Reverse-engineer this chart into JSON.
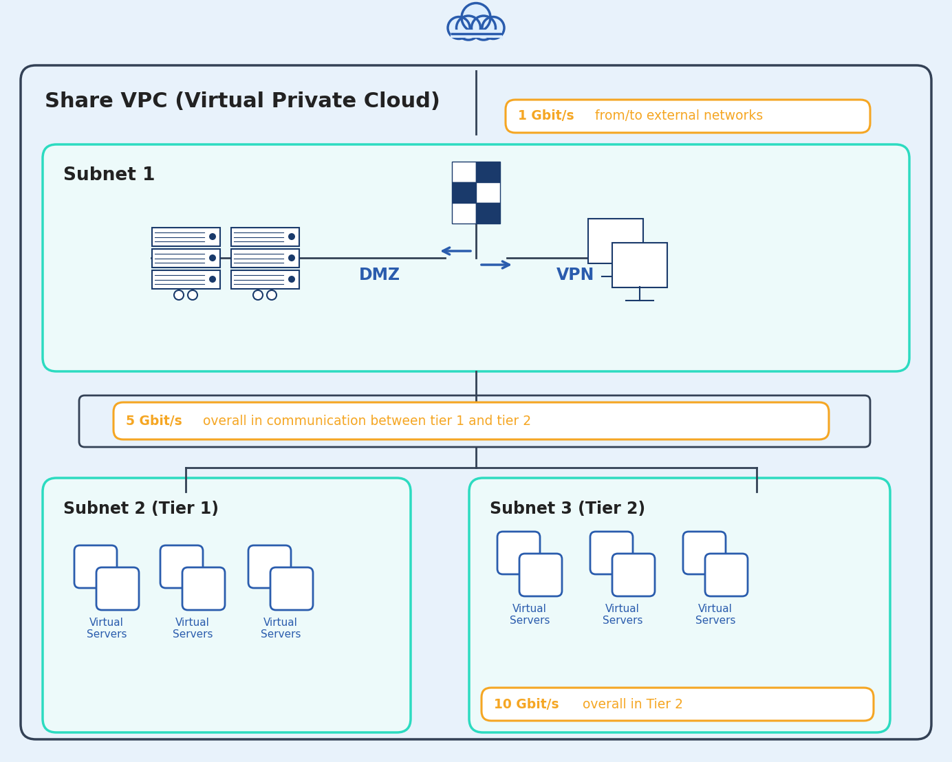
{
  "bg_color": "#e8f2fb",
  "vpc_border": "#334155",
  "teal": "#2cdbc0",
  "dark_blue": "#1a3a6b",
  "mid_blue": "#2a5cad",
  "orange": "#f5a623",
  "text_dark": "#222222",
  "text_blue": "#2a5cad",
  "white": "#ffffff",
  "label_vpc": "Share VPC (Virtual Private Cloud)",
  "label_subnet1": "Subnet 1",
  "label_subnet2": "Subnet 2 (Tier 1)",
  "label_subnet3": "Subnet 3 (Tier 2)",
  "label_dmz": "DMZ",
  "label_vpn": "VPN",
  "label_1gbit_bold": "1 Gbit/s",
  "label_1gbit_rest": " from/to external networks",
  "label_5gbit_bold": "5 Gbit/s",
  "label_5gbit_rest": " overall in communication between tier 1 and tier 2",
  "label_10gbit_bold": "10 Gbit/s",
  "label_10gbit_rest": " overall in Tier 2",
  "label_vs": "Virtual\nServers"
}
